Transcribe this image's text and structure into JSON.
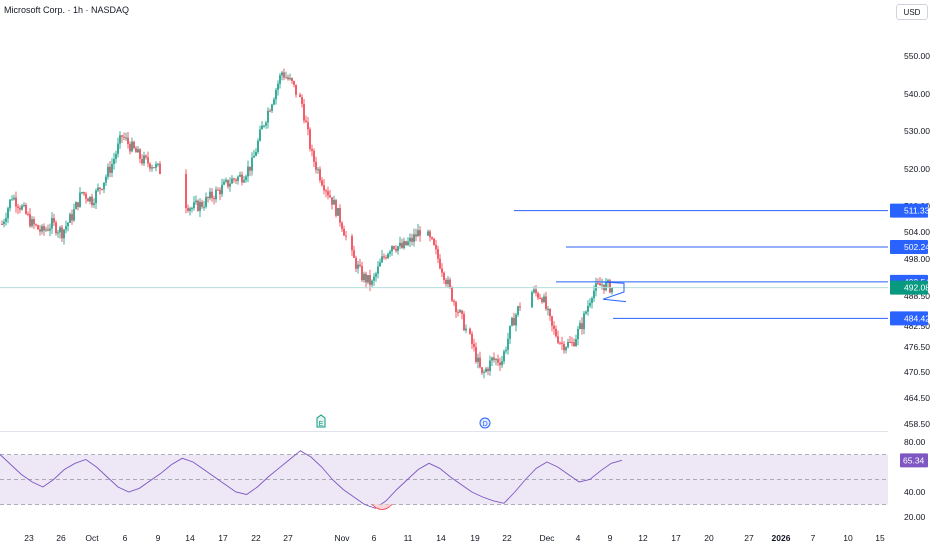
{
  "header": {
    "title": "Microsoft Corp. · 1h · NASDAQ",
    "currency": "USD"
  },
  "events": {
    "earnings": "E",
    "dividend": "D"
  },
  "colors": {
    "up": "#089981",
    "down": "#f23645",
    "level": "#2962ff",
    "rsi_line": "#7e57c2",
    "rsi_band": "#ede7f6",
    "rsi_oversold": "#f23645",
    "price_line": "#b2dfdb"
  },
  "chart_data": [
    {
      "type": "candlestick",
      "title": "Microsoft Corp. · 1h · NASDAQ",
      "y_ticks": [
        "550.00",
        "540.00",
        "530.00",
        "520.00",
        "510.00",
        "504.00",
        "498.00",
        "493.54",
        "492.00",
        "488.50",
        "482.50",
        "476.50",
        "470.50",
        "464.50",
        "458.50"
      ],
      "x_ticks": [
        "23",
        "26",
        "Oct",
        "6",
        "9",
        "14",
        "17",
        "22",
        "27",
        "Nov",
        "6",
        "11",
        "14",
        "19",
        "22",
        "Dec",
        "4",
        "9",
        "12",
        "17",
        "20",
        "27",
        "2026",
        "7",
        "10",
        "15"
      ],
      "price_path": [
        [
          0,
          508
        ],
        [
          5,
          515
        ],
        [
          10,
          512
        ],
        [
          15,
          508
        ],
        [
          20,
          506
        ],
        [
          25,
          508
        ],
        [
          30,
          506
        ],
        [
          35,
          510
        ],
        [
          40,
          516
        ],
        [
          45,
          514
        ],
        [
          50,
          518
        ],
        [
          55,
          523
        ],
        [
          60,
          530
        ],
        [
          65,
          527
        ],
        [
          70,
          524
        ],
        [
          75,
          523
        ],
        [
          80,
          521
        ],
        [
          85,
          518
        ],
        [
          90,
          514
        ],
        [
          95,
          512
        ],
        [
          100,
          513
        ],
        [
          105,
          515
        ],
        [
          110,
          517
        ],
        [
          115,
          519
        ],
        [
          120,
          520
        ],
        [
          125,
          523
        ],
        [
          130,
          532
        ],
        [
          135,
          539
        ],
        [
          140,
          546
        ],
        [
          145,
          543
        ],
        [
          150,
          538
        ],
        [
          155,
          525
        ],
        [
          160,
          519
        ],
        [
          165,
          514
        ],
        [
          170,
          508
        ],
        [
          175,
          500
        ],
        [
          180,
          495
        ],
        [
          185,
          493
        ],
        [
          190,
          499
        ],
        [
          195,
          503
        ],
        [
          200,
          502
        ],
        [
          205,
          504
        ],
        [
          210,
          507
        ],
        [
          215,
          503
        ],
        [
          220,
          497
        ],
        [
          225,
          490
        ],
        [
          230,
          484
        ],
        [
          235,
          478
        ],
        [
          240,
          470
        ],
        [
          245,
          474
        ],
        [
          250,
          474
        ],
        [
          255,
          483
        ],
        [
          260,
          489
        ],
        [
          265,
          491
        ],
        [
          270,
          490
        ],
        [
          275,
          482
        ],
        [
          280,
          478
        ],
        [
          285,
          478
        ],
        [
          290,
          483
        ],
        [
          295,
          491
        ],
        [
          300,
          493
        ],
        [
          305,
          492.08
        ]
      ],
      "current_price": {
        "label": "492.08",
        "value": 492.08
      },
      "levels": [
        {
          "label": "511.33",
          "value": 511.33
        },
        {
          "label": "502.24",
          "value": 502.24
        },
        {
          "label": "493.54",
          "value": 493.54
        },
        {
          "label": "484.42",
          "value": 484.42
        }
      ]
    },
    {
      "type": "line",
      "indicator": "RSI",
      "y_ticks": [
        "80.00",
        "40.00",
        "20.00"
      ],
      "bands": [
        30,
        70
      ],
      "current": {
        "label": "65.34",
        "value": 65.34
      },
      "values": [
        70,
        62,
        54,
        48,
        44,
        50,
        58,
        63,
        66,
        60,
        52,
        44,
        40,
        43,
        49,
        55,
        62,
        67,
        64,
        58,
        52,
        46,
        40,
        38,
        44,
        52,
        59,
        66,
        73,
        68,
        60,
        50,
        42,
        36,
        30,
        27,
        33,
        42,
        50,
        58,
        63,
        59,
        52,
        46,
        40,
        36,
        33,
        31,
        40,
        50,
        59,
        64,
        60,
        54,
        48,
        50,
        57,
        63,
        65.34
      ]
    }
  ]
}
